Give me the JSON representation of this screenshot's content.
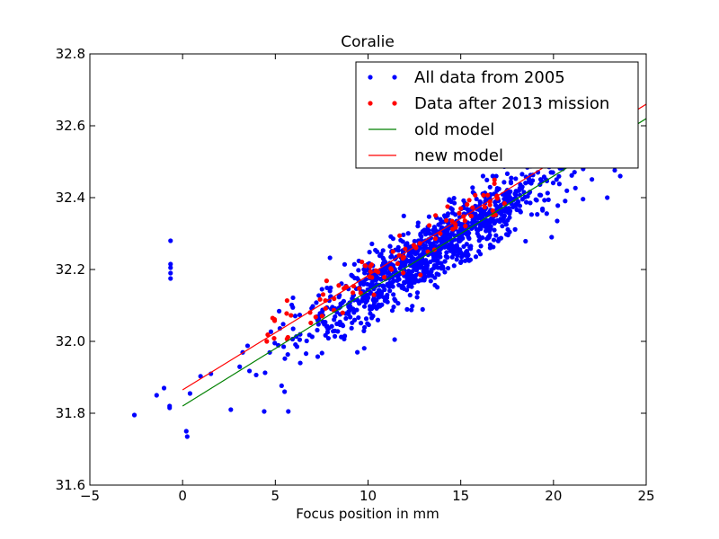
{
  "chart_data": {
    "type": "scatter",
    "title": "Coralie",
    "xlabel": "Focus position in mm",
    "ylabel": "",
    "xlim": [
      -5,
      25
    ],
    "ylim": [
      31.6,
      32.8
    ],
    "xticks": [
      "−5",
      "0",
      "5",
      "10",
      "15",
      "20",
      "25"
    ],
    "xtick_values": [
      -5,
      0,
      5,
      10,
      15,
      20,
      25
    ],
    "yticks": [
      "31.6",
      "31.8",
      "32.0",
      "32.2",
      "32.4",
      "32.6",
      "32.8"
    ],
    "ytick_values": [
      31.6,
      31.8,
      32.0,
      32.2,
      32.4,
      32.6,
      32.8
    ],
    "grid": false,
    "legend_position": "top-right",
    "series": [
      {
        "name": "All data from 2005",
        "kind": "points",
        "color": "#0000ff",
        "trend": {
          "x0": 0,
          "y0": 31.82,
          "x1": 25,
          "y1": 32.62,
          "spread": 0.045
        },
        "count": 1100,
        "x_center": 13.5,
        "x_sd": 3.6,
        "outliers": [
          [
            -2.6,
            31.795
          ],
          [
            -1.4,
            31.85
          ],
          [
            -1.0,
            31.87
          ],
          [
            -0.7,
            31.815
          ],
          [
            -0.7,
            31.82
          ],
          [
            -0.65,
            32.28
          ],
          [
            -0.65,
            32.215
          ],
          [
            -0.65,
            32.205
          ],
          [
            -0.65,
            32.19
          ],
          [
            -0.65,
            32.175
          ],
          [
            0.2,
            31.75
          ],
          [
            0.25,
            31.735
          ],
          [
            0.4,
            31.855
          ],
          [
            2.6,
            31.81
          ],
          [
            4.4,
            31.805
          ],
          [
            5.5,
            31.86
          ],
          [
            5.7,
            31.805
          ],
          [
            19.6,
            32.45
          ],
          [
            19.9,
            32.29
          ],
          [
            20.2,
            32.335
          ],
          [
            20.5,
            32.48
          ],
          [
            21.1,
            32.52
          ],
          [
            21.6,
            32.48
          ],
          [
            22.2,
            32.56
          ],
          [
            22.9,
            32.4
          ],
          [
            23.6,
            32.46
          ],
          [
            23.9,
            32.5
          ],
          [
            16.2,
            32.46
          ],
          [
            17.7,
            32.5
          ],
          [
            18.6,
            32.5
          ]
        ]
      },
      {
        "name": "Data after 2013 mission",
        "kind": "points",
        "color": "#ff0000",
        "trend": {
          "x0": 0,
          "y0": 31.865,
          "x1": 25,
          "y1": 32.66,
          "spread": 0.03
        },
        "count": 90,
        "x_range": [
          4.5,
          17.5
        ]
      },
      {
        "name": "old model",
        "kind": "line",
        "color": "#008000",
        "points": [
          [
            0,
            31.82
          ],
          [
            25,
            32.62
          ]
        ]
      },
      {
        "name": "new model",
        "kind": "line",
        "color": "#ff0000",
        "points": [
          [
            0,
            31.865
          ],
          [
            25,
            32.66
          ]
        ]
      }
    ]
  }
}
